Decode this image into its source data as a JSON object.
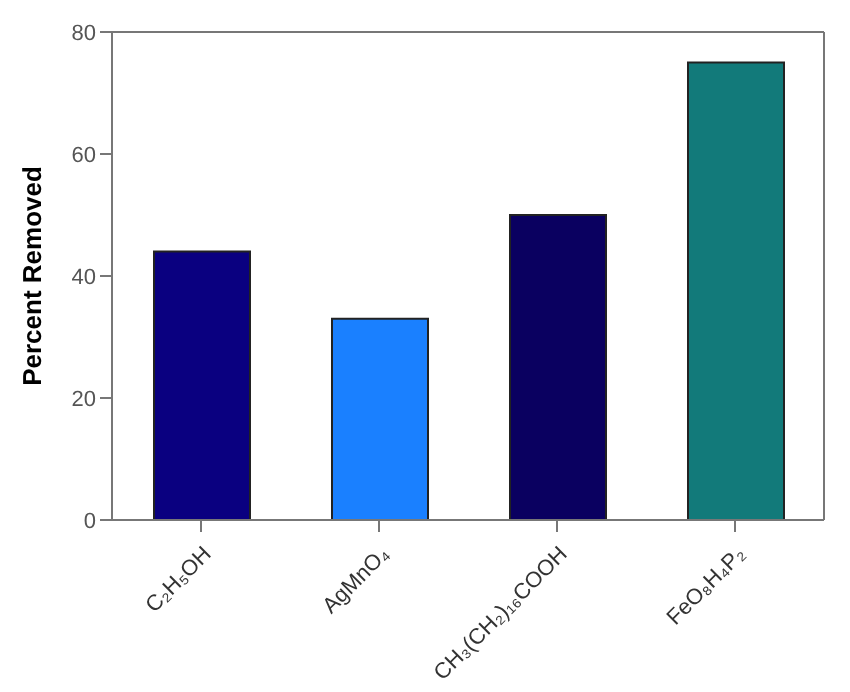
{
  "chart_data": {
    "type": "bar",
    "ylabel": "Percent Removed",
    "categories": [
      "C₂H₅OH",
      "AgMnO₄",
      "CH₃(CH₂)₁₆COOH",
      "FeO₈H₄P₂"
    ],
    "values": [
      44,
      33,
      50,
      75
    ],
    "colors": [
      "#0a0080",
      "#1a80ff",
      "#0a0060",
      "#127a7a"
    ],
    "ylim": [
      0,
      80
    ],
    "yticks": [
      0,
      20,
      40,
      60,
      80
    ],
    "grid": false,
    "legend": false
  }
}
